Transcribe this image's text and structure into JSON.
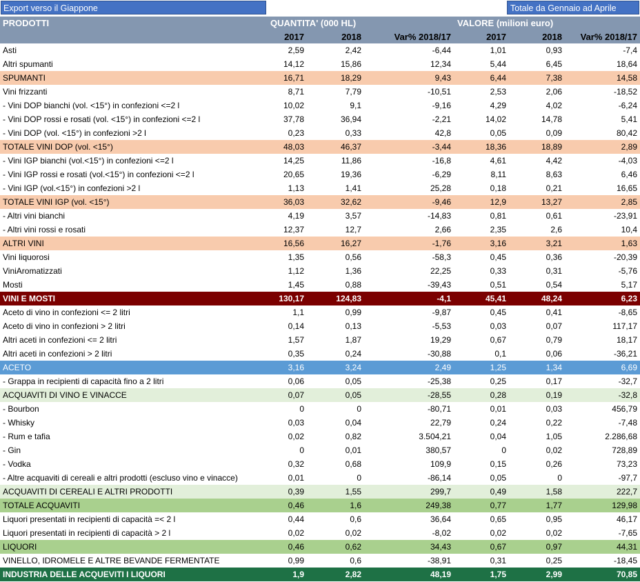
{
  "header_bar": {
    "left_title": "Export verso il Giappone",
    "right_title": "Totale da Gennaio ad Aprile"
  },
  "table": {
    "col_products": "PRODOTTI",
    "group_quantity": "QUANTITA' (000 HL)",
    "group_value": "VALORE (milioni euro)",
    "sub_headers": [
      "2017",
      "2018",
      "Var% 2018/17",
      "2017",
      "2018",
      "Var% 2018/17"
    ],
    "rows": [
      {
        "style": "plain",
        "label": "Asti",
        "v": [
          "2,59",
          "2,42",
          "-6,44",
          "1,01",
          "0,93",
          "-7,4"
        ]
      },
      {
        "style": "plain",
        "label": "Altri spumanti",
        "v": [
          "14,12",
          "15,86",
          "12,34",
          "5,44",
          "6,45",
          "18,64"
        ]
      },
      {
        "style": "peach",
        "label": "SPUMANTI",
        "v": [
          "16,71",
          "18,29",
          "9,43",
          "6,44",
          "7,38",
          "14,58"
        ]
      },
      {
        "style": "plain",
        "label": "Vini frizzanti",
        "v": [
          "8,71",
          "7,79",
          "-10,51",
          "2,53",
          "2,06",
          "-18,52"
        ]
      },
      {
        "style": "plain",
        "label": "- Vini DOP bianchi (vol. <15°) in confezioni <=2 l",
        "v": [
          "10,02",
          "9,1",
          "-9,16",
          "4,29",
          "4,02",
          "-6,24"
        ]
      },
      {
        "style": "plain",
        "label": "- Vini DOP rossi e rosati (vol. <15°) in confezioni <=2 l",
        "v": [
          "37,78",
          "36,94",
          "-2,21",
          "14,02",
          "14,78",
          "5,41"
        ]
      },
      {
        "style": "plain",
        "label": "- Vini DOP (vol. <15°) in confezioni >2 l",
        "v": [
          "0,23",
          "0,33",
          "42,8",
          "0,05",
          "0,09",
          "80,42"
        ]
      },
      {
        "style": "peach",
        "label": "TOTALE VINI DOP (vol. <15°)",
        "v": [
          "48,03",
          "46,37",
          "-3,44",
          "18,36",
          "18,89",
          "2,89"
        ]
      },
      {
        "style": "plain",
        "label": "- Vini IGP bianchi (vol.<15°) in confezioni <=2 l",
        "v": [
          "14,25",
          "11,86",
          "-16,8",
          "4,61",
          "4,42",
          "-4,03"
        ]
      },
      {
        "style": "plain",
        "label": "- Vini IGP rossi e rosati (vol.<15°) in confezioni <=2 l",
        "v": [
          "20,65",
          "19,36",
          "-6,29",
          "8,11",
          "8,63",
          "6,46"
        ]
      },
      {
        "style": "plain",
        "label": "- Vini IGP (vol.<15°) in confezioni >2 l",
        "v": [
          "1,13",
          "1,41",
          "25,28",
          "0,18",
          "0,21",
          "16,65"
        ]
      },
      {
        "style": "peach",
        "label": "TOTALE VINI IGP (vol. <15°)",
        "v": [
          "36,03",
          "32,62",
          "-9,46",
          "12,9",
          "13,27",
          "2,85"
        ]
      },
      {
        "style": "plain",
        "label": "- Altri vini bianchi",
        "v": [
          "4,19",
          "3,57",
          "-14,83",
          "0,81",
          "0,61",
          "-23,91"
        ]
      },
      {
        "style": "plain",
        "label": "- Altri vini rossi e rosati",
        "v": [
          "12,37",
          "12,7",
          "2,66",
          "2,35",
          "2,6",
          "10,4"
        ]
      },
      {
        "style": "peach",
        "label": "ALTRI VINI",
        "v": [
          "16,56",
          "16,27",
          "-1,76",
          "3,16",
          "3,21",
          "1,63"
        ]
      },
      {
        "style": "plain",
        "label": "Vini liquorosi",
        "v": [
          "1,35",
          "0,56",
          "-58,3",
          "0,45",
          "0,36",
          "-20,39"
        ]
      },
      {
        "style": "plain",
        "label": "ViniAromatizzati",
        "v": [
          "1,12",
          "1,36",
          "22,25",
          "0,33",
          "0,31",
          "-5,76"
        ]
      },
      {
        "style": "plain",
        "label": "Mosti",
        "v": [
          "1,45",
          "0,88",
          "-39,43",
          "0,51",
          "0,54",
          "5,17"
        ]
      },
      {
        "style": "maroon",
        "label": "VINI E MOSTI",
        "v": [
          "130,17",
          "124,83",
          "-4,1",
          "45,41",
          "48,24",
          "6,23"
        ]
      },
      {
        "style": "plain",
        "label": "Aceto di vino in confezioni <= 2 litri",
        "v": [
          "1,1",
          "0,99",
          "-9,87",
          "0,45",
          "0,41",
          "-8,65"
        ]
      },
      {
        "style": "plain",
        "label": "Aceto di vino in confezioni > 2 litri",
        "v": [
          "0,14",
          "0,13",
          "-5,53",
          "0,03",
          "0,07",
          "117,17"
        ]
      },
      {
        "style": "plain",
        "label": "Altri aceti  in confezioni <= 2 litri",
        "v": [
          "1,57",
          "1,87",
          "19,29",
          "0,67",
          "0,79",
          "18,17"
        ]
      },
      {
        "style": "plain",
        "label": "Altri aceti in confezioni > 2 litri",
        "v": [
          "0,35",
          "0,24",
          "-30,88",
          "0,1",
          "0,06",
          "-36,21"
        ]
      },
      {
        "style": "blue",
        "label": "ACETO",
        "v": [
          "3,16",
          "3,24",
          "2,49",
          "1,25",
          "1,34",
          "6,69"
        ]
      },
      {
        "style": "plain",
        "label": "- Grappa in recipienti di capacità fino a 2 litri",
        "v": [
          "0,06",
          "0,05",
          "-25,38",
          "0,25",
          "0,17",
          "-32,7"
        ]
      },
      {
        "style": "lightgreen",
        "label": "ACQUAVITI DI VINO E VINACCE",
        "v": [
          "0,07",
          "0,05",
          "-28,55",
          "0,28",
          "0,19",
          "-32,8"
        ]
      },
      {
        "style": "plain",
        "label": "- Bourbon",
        "v": [
          "0",
          "0",
          "-80,71",
          "0,01",
          "0,03",
          "456,79"
        ]
      },
      {
        "style": "plain",
        "label": "- Whisky",
        "v": [
          "0,03",
          "0,04",
          "22,79",
          "0,24",
          "0,22",
          "-7,48"
        ]
      },
      {
        "style": "plain",
        "label": "- Rum e tafia",
        "v": [
          "0,02",
          "0,82",
          "3.504,21",
          "0,04",
          "1,05",
          "2.286,68"
        ]
      },
      {
        "style": "plain",
        "label": "- Gin",
        "v": [
          "0",
          "0,01",
          "380,57",
          "0",
          "0,02",
          "728,89"
        ]
      },
      {
        "style": "plain",
        "label": "- Vodka",
        "v": [
          "0,32",
          "0,68",
          "109,9",
          "0,15",
          "0,26",
          "73,23"
        ]
      },
      {
        "style": "plain",
        "label": "- Altre acquaviti di cereali e altri prodotti (escluso vino e vinacce)",
        "v": [
          "0,01",
          "0",
          "-86,14",
          "0,05",
          "0",
          "-97,7"
        ]
      },
      {
        "style": "lightgreen",
        "label": "ACQUAVITI DI CEREALI E ALTRI PRODOTTI",
        "v": [
          "0,39",
          "1,55",
          "299,7",
          "0,49",
          "1,58",
          "222,7"
        ]
      },
      {
        "style": "green",
        "label": "TOTALE ACQUAVITI",
        "v": [
          "0,46",
          "1,6",
          "249,38",
          "0,77",
          "1,77",
          "129,98"
        ]
      },
      {
        "style": "plain",
        "label": "Liquori presentati in recipienti di capacità =< 2 l",
        "v": [
          "0,44",
          "0,6",
          "36,64",
          "0,65",
          "0,95",
          "46,17"
        ]
      },
      {
        "style": "plain",
        "label": "Liquori presentati in recipienti di capacità > 2 l",
        "v": [
          "0,02",
          "0,02",
          "-8,02",
          "0,02",
          "0,02",
          "-7,65"
        ]
      },
      {
        "style": "green",
        "label": "LIQUORI",
        "v": [
          "0,46",
          "0,62",
          "34,43",
          "0,67",
          "0,97",
          "44,31"
        ]
      },
      {
        "style": "plain",
        "label": "VINELLO, IDROMELE E ALTRE BEVANDE FERMENTATE",
        "v": [
          "0,99",
          "0,6",
          "-38,91",
          "0,31",
          "0,25",
          "-18,45"
        ]
      },
      {
        "style": "darkgreen",
        "label": "INDUSTRIA DELLE ACQUEVITI I LIQUORI",
        "v": [
          "1,9",
          "2,82",
          "48,19",
          "1,75",
          "2,99",
          "70,85"
        ]
      }
    ]
  }
}
